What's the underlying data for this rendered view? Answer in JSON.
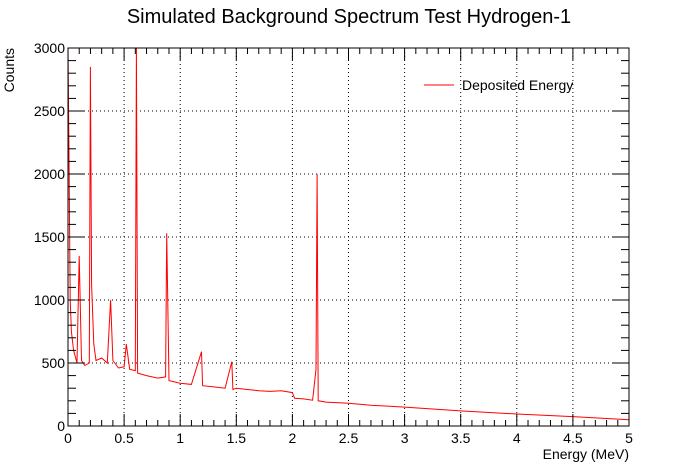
{
  "chart_data": {
    "type": "line",
    "title": "Simulated Background Spectrum Test Hydrogen-1",
    "xlabel": "Energy (MeV)",
    "ylabel": "Counts",
    "xlim": [
      0,
      5
    ],
    "ylim": [
      0,
      3000
    ],
    "xticks": [
      "0",
      "0.5",
      "1",
      "1.5",
      "2",
      "2.5",
      "3",
      "3.5",
      "4",
      "4.5",
      "5"
    ],
    "yticks": [
      "0",
      "500",
      "1000",
      "1500",
      "2000",
      "2500",
      "3000"
    ],
    "grid": true,
    "legend_position": "top-right",
    "series": [
      {
        "name": "Deposited Energy",
        "color": "#ff0000",
        "x": [
          0.0,
          0.01,
          0.02,
          0.03,
          0.05,
          0.08,
          0.1,
          0.12,
          0.15,
          0.19,
          0.2,
          0.21,
          0.23,
          0.25,
          0.3,
          0.35,
          0.38,
          0.4,
          0.45,
          0.5,
          0.52,
          0.55,
          0.6,
          0.61,
          0.62,
          0.7,
          0.8,
          0.87,
          0.88,
          0.9,
          1.0,
          1.1,
          1.19,
          1.2,
          1.3,
          1.4,
          1.46,
          1.47,
          1.5,
          1.6,
          1.7,
          1.8,
          1.9,
          2.0,
          2.02,
          2.1,
          2.18,
          2.21,
          2.22,
          2.23,
          2.3,
          2.5,
          2.7,
          3.0,
          3.5,
          4.0,
          4.5,
          5.0
        ],
        "y": [
          3000,
          2050,
          1000,
          750,
          600,
          500,
          1350,
          520,
          480,
          500,
          2850,
          1120,
          650,
          520,
          540,
          500,
          1000,
          520,
          460,
          470,
          650,
          450,
          440,
          3000,
          420,
          400,
          380,
          390,
          1530,
          360,
          340,
          330,
          590,
          320,
          310,
          300,
          510,
          290,
          300,
          290,
          280,
          275,
          280,
          265,
          220,
          215,
          205,
          450,
          2000,
          200,
          190,
          180,
          165,
          150,
          120,
          95,
          75,
          50
        ]
      }
    ]
  }
}
